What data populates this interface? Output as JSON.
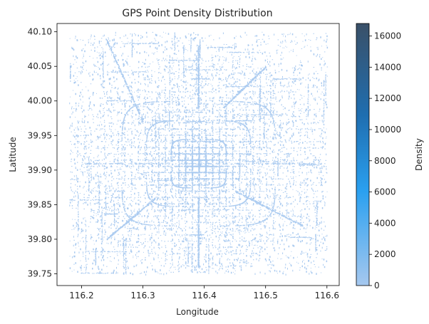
{
  "chart_data": {
    "type": "heatmap",
    "title": "GPS Point Density Distribution",
    "xlabel": "Longitude",
    "ylabel": "Latitude",
    "xlim": [
      116.16,
      116.62
    ],
    "ylim": [
      39.733,
      40.112
    ],
    "x_ticks": [
      "116.2",
      "116.3",
      "116.4",
      "116.5",
      "116.6"
    ],
    "x_tick_values": [
      116.2,
      116.3,
      116.4,
      116.5,
      116.6
    ],
    "y_ticks": [
      "39.75",
      "39.80",
      "39.85",
      "39.90",
      "39.95",
      "40.00",
      "40.05",
      "40.10"
    ],
    "y_tick_values": [
      39.75,
      39.8,
      39.85,
      39.9,
      39.95,
      40.0,
      40.05,
      40.1
    ],
    "colorbar": {
      "label": "Density",
      "min": 0,
      "max": 16800,
      "ticks": [
        "0",
        "2000",
        "4000",
        "6000",
        "8000",
        "10000",
        "12000",
        "14000",
        "16000"
      ],
      "tick_values": [
        0,
        2000,
        4000,
        6000,
        8000,
        10000,
        12000,
        14000,
        16000
      ],
      "colors": [
        "#a6c8ef",
        "#2aa0f0",
        "#1f6eb0",
        "#3a5068"
      ]
    },
    "center_lon": 116.39,
    "center_lat": 39.91,
    "roads": [
      {
        "kind": "ring",
        "radius_lon": 0.045,
        "radius_lat": 0.035
      },
      {
        "kind": "ring",
        "radius_lon": 0.085,
        "radius_lat": 0.062
      },
      {
        "kind": "ring",
        "radius_lon": 0.125,
        "radius_lat": 0.09
      },
      {
        "kind": "segment",
        "from": [
          116.43,
          39.99
        ],
        "to": [
          116.5,
          40.05
        ]
      },
      {
        "kind": "segment",
        "from": [
          116.3,
          39.97
        ],
        "to": [
          116.24,
          40.09
        ]
      },
      {
        "kind": "segment",
        "from": [
          116.39,
          39.99
        ],
        "to": [
          116.39,
          40.08
        ]
      },
      {
        "kind": "segment",
        "from": [
          116.2,
          39.91
        ],
        "to": [
          116.6,
          39.91
        ]
      },
      {
        "kind": "segment",
        "from": [
          116.39,
          39.76
        ],
        "to": [
          116.39,
          39.86
        ]
      },
      {
        "kind": "segment",
        "from": [
          116.45,
          39.87
        ],
        "to": [
          116.56,
          39.82
        ]
      },
      {
        "kind": "segment",
        "from": [
          116.32,
          39.86
        ],
        "to": [
          116.24,
          39.8
        ]
      }
    ]
  }
}
